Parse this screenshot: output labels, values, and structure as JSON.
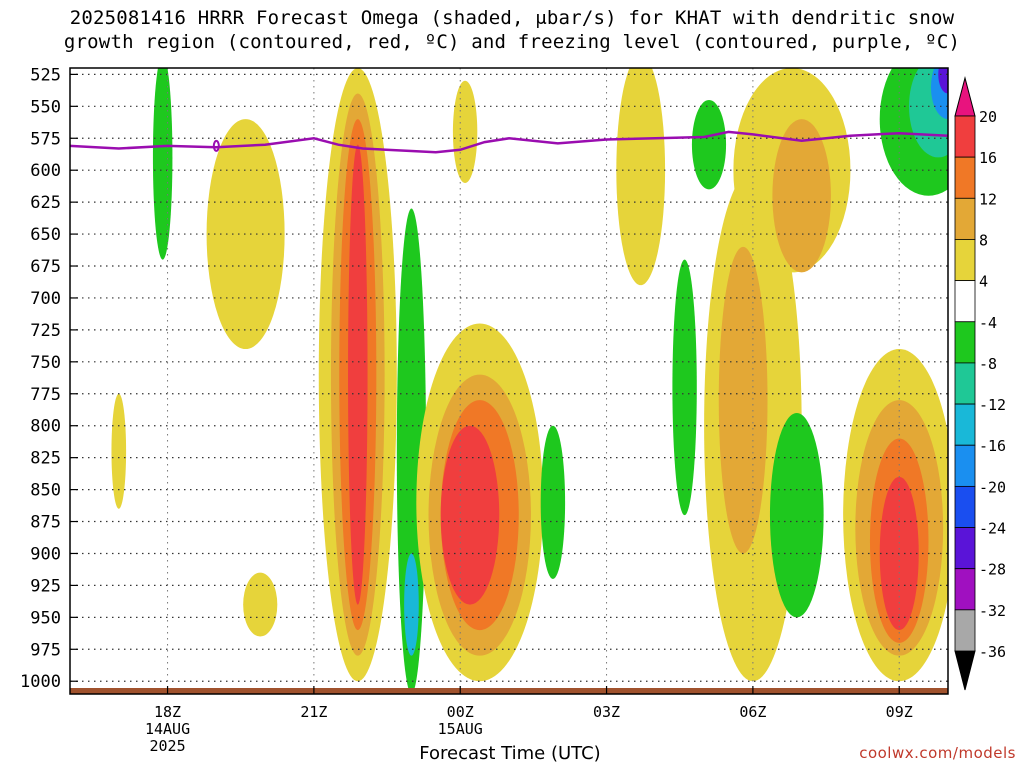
{
  "title_line1": "2025081416 HRRR Forecast Omega (shaded, μbar/s) for KHAT with dendritic snow",
  "title_line2": "growth region (contoured, red, ºC) and freezing level (contoured, purple, ºC)",
  "xlabel": "Forecast Time (UTC)",
  "credit": "coolwx.com/models",
  "chart_data": {
    "type": "heatmap",
    "x_ticks": [
      {
        "t": 0,
        "lines": [
          "18Z",
          "14AUG",
          "2025"
        ]
      },
      {
        "t": 3,
        "lines": [
          "21Z"
        ]
      },
      {
        "t": 6,
        "lines": [
          "00Z",
          "15AUG"
        ]
      },
      {
        "t": 9,
        "lines": [
          "03Z"
        ]
      },
      {
        "t": 12,
        "lines": [
          "06Z"
        ]
      },
      {
        "t": 15,
        "lines": [
          "09Z"
        ]
      }
    ],
    "xlim": [
      -2,
      16
    ],
    "y_ticks": [
      525,
      550,
      575,
      600,
      625,
      650,
      675,
      700,
      725,
      750,
      775,
      800,
      825,
      850,
      875,
      900,
      925,
      950,
      975,
      1000
    ],
    "ylim": [
      1010,
      520
    ],
    "colorbar_labels": [
      "20",
      "16",
      "12",
      "8",
      "4",
      "-4",
      "-8",
      "-12",
      "-16",
      "-20",
      "-24",
      "-28",
      "-32",
      "-36"
    ],
    "colorbar_colors": [
      "#e8137e",
      "#f03e3e",
      "#f07826",
      "#e3a836",
      "#e6d43a",
      "#ffffff",
      "#1ec81e",
      "#1fc896",
      "#19b8d8",
      "#1a8ff0",
      "#1a4ef0",
      "#5a14d8",
      "#a010c0",
      "#a8a8a8"
    ],
    "freezing_level": {
      "color": "#9a0db0",
      "t": [
        -2,
        -1,
        0,
        1,
        2,
        3,
        3.5,
        4,
        5,
        5.5,
        6,
        6.5,
        7,
        8,
        9,
        10,
        11,
        11.5,
        12,
        13,
        14,
        15,
        16
      ],
      "p": [
        581,
        583,
        581,
        582,
        580,
        575,
        580,
        583,
        585,
        586,
        584,
        578,
        575,
        579,
        576,
        575,
        574,
        570,
        572,
        577,
        573,
        571,
        573
      ]
    },
    "snow_growth_marker": {
      "t": 1,
      "p": 581,
      "color": "#9a0db0"
    },
    "surface_terrain_color": "#a0522d",
    "omega_blobs": [
      {
        "t": -0.1,
        "p": 590,
        "rt": 0.2,
        "rp": 80,
        "level": -5
      },
      {
        "t": -1,
        "p": 820,
        "rt": 0.15,
        "rp": 45,
        "level": 5
      },
      {
        "t": 1.6,
        "p": 650,
        "rt": 0.8,
        "rp": 90,
        "level": 5
      },
      {
        "t": 1.9,
        "p": 940,
        "rt": 0.35,
        "rp": 25,
        "level": 5
      },
      {
        "t": 3.9,
        "p": 760,
        "rt": 0.8,
        "rp": 240,
        "level": 5
      },
      {
        "t": 3.9,
        "p": 760,
        "rt": 0.55,
        "rp": 220,
        "level": 10
      },
      {
        "t": 3.9,
        "p": 760,
        "rt": 0.38,
        "rp": 200,
        "level": 14
      },
      {
        "t": 3.9,
        "p": 760,
        "rt": 0.2,
        "rp": 180,
        "level": 18
      },
      {
        "t": 5,
        "p": 820,
        "rt": 0.3,
        "rp": 190,
        "level": -5
      },
      {
        "t": 5,
        "p": 940,
        "rt": 0.15,
        "rp": 40,
        "level": -13
      },
      {
        "t": 6.1,
        "p": 570,
        "rt": 0.25,
        "rp": 40,
        "level": 5
      },
      {
        "t": 6.4,
        "p": 860,
        "rt": 1.3,
        "rp": 140,
        "level": 5
      },
      {
        "t": 6.4,
        "p": 870,
        "rt": 1.05,
        "rp": 110,
        "level": 10
      },
      {
        "t": 6.4,
        "p": 870,
        "rt": 0.8,
        "rp": 90,
        "level": 14
      },
      {
        "t": 6.2,
        "p": 870,
        "rt": 0.6,
        "rp": 70,
        "level": 18
      },
      {
        "t": 7.9,
        "p": 860,
        "rt": 0.25,
        "rp": 60,
        "level": -5
      },
      {
        "t": 9.7,
        "p": 600,
        "rt": 0.5,
        "rp": 90,
        "level": 5
      },
      {
        "t": 10.6,
        "p": 770,
        "rt": 0.25,
        "rp": 100,
        "level": -5
      },
      {
        "t": 12,
        "p": 800,
        "rt": 1,
        "rp": 200,
        "level": 5
      },
      {
        "t": 11.8,
        "p": 780,
        "rt": 0.5,
        "rp": 120,
        "level": 10
      },
      {
        "t": 11.1,
        "p": 580,
        "rt": 0.35,
        "rp": 35,
        "level": -5
      },
      {
        "t": 12.8,
        "p": 600,
        "rt": 1.2,
        "rp": 80,
        "level": 5
      },
      {
        "t": 13,
        "p": 620,
        "rt": 0.6,
        "rp": 60,
        "level": 10
      },
      {
        "t": 12.9,
        "p": 870,
        "rt": 0.55,
        "rp": 80,
        "level": -5
      },
      {
        "t": 15,
        "p": 870,
        "rt": 1.15,
        "rp": 130,
        "level": 5
      },
      {
        "t": 15,
        "p": 880,
        "rt": 0.9,
        "rp": 100,
        "level": 10
      },
      {
        "t": 15,
        "p": 890,
        "rt": 0.6,
        "rp": 80,
        "level": 14
      },
      {
        "t": 15,
        "p": 900,
        "rt": 0.4,
        "rp": 60,
        "level": 18
      },
      {
        "t": 15.6,
        "p": 560,
        "rt": 1,
        "rp": 60,
        "level": -5
      },
      {
        "t": 15.8,
        "p": 550,
        "rt": 0.6,
        "rp": 40,
        "level": -10
      },
      {
        "t": 16,
        "p": 535,
        "rt": 0.35,
        "rp": 25,
        "level": -16
      },
      {
        "t": 16,
        "p": 525,
        "rt": 0.2,
        "rp": 15,
        "level": -25
      }
    ]
  }
}
